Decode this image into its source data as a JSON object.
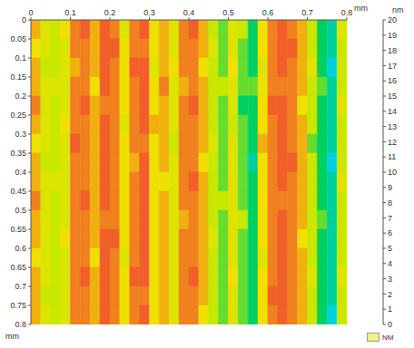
{
  "chart_data": {
    "type": "heatmap",
    "x_label": "mm",
    "y_label": "mm",
    "xlim": [
      0,
      0.8
    ],
    "xticks": [
      0,
      0.1,
      0.2,
      0.3,
      0.4,
      0.5,
      0.6,
      0.7,
      0.8
    ],
    "ylim": [
      0.8,
      0
    ],
    "yticks": [
      0,
      0.05,
      0.1,
      0.15,
      0.2,
      0.25,
      0.3,
      0.35,
      0.4,
      0.45,
      0.5,
      0.55,
      0.6,
      0.65,
      0.7,
      0.75,
      0.8
    ],
    "cells": [
      [
        14,
        12,
        11,
        13,
        15,
        16,
        14,
        16,
        15,
        12,
        15,
        16,
        13,
        14,
        12,
        15,
        16,
        14,
        11,
        10,
        12,
        11,
        9,
        13,
        15,
        16,
        15,
        14,
        11,
        9,
        8,
        12
      ],
      [
        13,
        12,
        11,
        12,
        15,
        15,
        14,
        16,
        16,
        13,
        15,
        15,
        13,
        14,
        12,
        15,
        15,
        14,
        12,
        10,
        12,
        10,
        9,
        13,
        15,
        16,
        16,
        14,
        11,
        9,
        8,
        11
      ],
      [
        14,
        11,
        11,
        12,
        14,
        15,
        14,
        16,
        15,
        13,
        16,
        16,
        12,
        14,
        13,
        15,
        15,
        13,
        11,
        10,
        13,
        10,
        9,
        12,
        15,
        16,
        15,
        14,
        12,
        9,
        7,
        11
      ],
      [
        14,
        12,
        12,
        12,
        15,
        15,
        13,
        16,
        15,
        13,
        15,
        16,
        13,
        15,
        12,
        14,
        15,
        14,
        11,
        11,
        12,
        10,
        10,
        13,
        15,
        15,
        15,
        14,
        11,
        10,
        8,
        11
      ],
      [
        15,
        12,
        11,
        12,
        15,
        16,
        14,
        15,
        15,
        13,
        15,
        16,
        13,
        14,
        12,
        15,
        16,
        14,
        11,
        10,
        12,
        9,
        9,
        13,
        16,
        16,
        15,
        13,
        11,
        9,
        8,
        12
      ],
      [
        14,
        12,
        11,
        13,
        15,
        15,
        14,
        16,
        15,
        12,
        15,
        16,
        14,
        14,
        12,
        15,
        15,
        14,
        11,
        10,
        11,
        10,
        9,
        13,
        15,
        16,
        15,
        14,
        11,
        9,
        8,
        11
      ],
      [
        13,
        12,
        11,
        12,
        16,
        15,
        14,
        16,
        15,
        13,
        15,
        15,
        13,
        14,
        11,
        15,
        15,
        14,
        12,
        10,
        12,
        10,
        9,
        14,
        15,
        16,
        15,
        14,
        10,
        9,
        8,
        11
      ],
      [
        14,
        11,
        11,
        12,
        15,
        15,
        14,
        16,
        15,
        13,
        14,
        16,
        13,
        14,
        12,
        15,
        15,
        13,
        11,
        10,
        12,
        10,
        8,
        13,
        15,
        16,
        16,
        14,
        11,
        9,
        7,
        11
      ],
      [
        14,
        12,
        12,
        12,
        15,
        15,
        14,
        16,
        15,
        13,
        15,
        16,
        13,
        13,
        12,
        15,
        16,
        14,
        11,
        10,
        12,
        10,
        9,
        13,
        15,
        16,
        15,
        14,
        11,
        9,
        8,
        12
      ],
      [
        15,
        12,
        11,
        12,
        15,
        16,
        14,
        16,
        15,
        13,
        15,
        16,
        13,
        14,
        12,
        15,
        15,
        14,
        11,
        11,
        12,
        10,
        9,
        13,
        15,
        15,
        15,
        14,
        11,
        9,
        8,
        11
      ],
      [
        14,
        12,
        11,
        12,
        15,
        15,
        14,
        15,
        15,
        13,
        15,
        16,
        13,
        14,
        12,
        14,
        15,
        14,
        11,
        10,
        12,
        11,
        9,
        13,
        15,
        16,
        15,
        14,
        11,
        10,
        8,
        11
      ],
      [
        14,
        12,
        11,
        13,
        15,
        15,
        14,
        16,
        16,
        13,
        15,
        16,
        13,
        14,
        12,
        15,
        15,
        14,
        12,
        10,
        12,
        10,
        9,
        13,
        15,
        16,
        15,
        13,
        11,
        9,
        8,
        11
      ],
      [
        13,
        12,
        11,
        12,
        15,
        15,
        13,
        16,
        15,
        12,
        15,
        16,
        13,
        14,
        12,
        15,
        15,
        14,
        11,
        10,
        12,
        10,
        9,
        12,
        15,
        16,
        15,
        14,
        11,
        9,
        8,
        11
      ],
      [
        14,
        12,
        11,
        12,
        15,
        16,
        14,
        16,
        15,
        13,
        16,
        16,
        13,
        14,
        12,
        15,
        16,
        14,
        11,
        10,
        13,
        10,
        9,
        13,
        15,
        16,
        15,
        14,
        12,
        9,
        8,
        12
      ],
      [
        14,
        11,
        11,
        12,
        15,
        15,
        14,
        16,
        15,
        13,
        15,
        15,
        13,
        14,
        12,
        15,
        15,
        14,
        11,
        10,
        12,
        10,
        9,
        13,
        16,
        16,
        15,
        14,
        11,
        9,
        8,
        11
      ],
      [
        14,
        12,
        11,
        12,
        15,
        15,
        14,
        16,
        15,
        13,
        15,
        16,
        13,
        14,
        12,
        15,
        15,
        13,
        11,
        10,
        12,
        10,
        9,
        13,
        15,
        16,
        15,
        14,
        11,
        9,
        7,
        11
      ]
    ],
    "colorbar": {
      "label": "nm",
      "range": [
        0,
        20
      ],
      "ticks": [
        0,
        1,
        2,
        3,
        4,
        5,
        6,
        7,
        8,
        9,
        10,
        11,
        12,
        13,
        14,
        15,
        16,
        17,
        18,
        19,
        20
      ]
    },
    "not_measured": {
      "label": "NM",
      "color": "#f5ee8a"
    }
  }
}
